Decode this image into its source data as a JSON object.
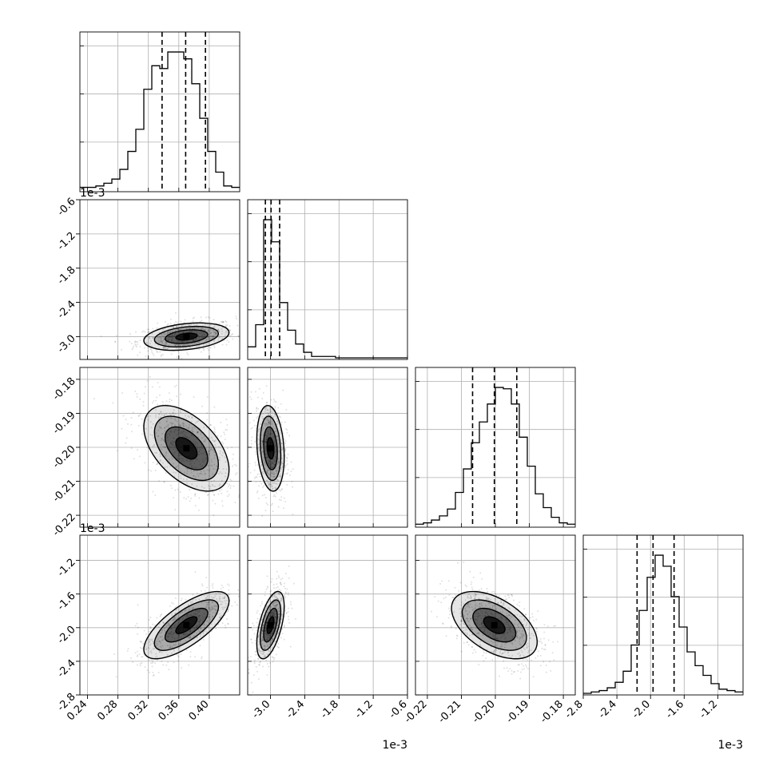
{
  "chart_data": {
    "type": "corner",
    "parameters": 4,
    "colors": {
      "frame": "#000000",
      "grid": "#b0b0b0",
      "points": "#000000",
      "hist": "#000000"
    },
    "axes": [
      {
        "ticks": [
          "0.24",
          "0.28",
          "0.32",
          "0.36",
          "0.40"
        ],
        "tick_values": [
          0.24,
          0.28,
          0.32,
          0.36,
          0.4
        ],
        "range": [
          0.23,
          0.44
        ],
        "offset": ""
      },
      {
        "ticks": [
          "-3.0",
          "-2.4",
          "-1.8",
          "-1.2",
          "-0.6"
        ],
        "tick_values": [
          -3.0,
          -2.4,
          -1.8,
          -1.2,
          -0.6
        ],
        "range": [
          -3.4,
          -0.6
        ],
        "offset": "1e-3"
      },
      {
        "ticks": [
          "-0.22",
          "-0.21",
          "-0.20",
          "-0.19",
          "-0.18"
        ],
        "tick_values": [
          -0.22,
          -0.21,
          -0.2,
          -0.19,
          -0.18
        ],
        "range": [
          -0.2235,
          -0.1765
        ],
        "offset": ""
      },
      {
        "ticks": [
          "-2.8",
          "-2.4",
          "-2.0",
          "-1.6",
          "-1.2"
        ],
        "tick_values": [
          -2.8,
          -2.4,
          -2.0,
          -1.6,
          -1.2
        ],
        "range": [
          -2.8,
          -0.9
        ],
        "offset": "1e-3"
      }
    ],
    "histograms": [
      {
        "edges_start": 0.23,
        "edges_end": 0.44,
        "counts": [
          2,
          2,
          3,
          5,
          8,
          15,
          28,
          44,
          73,
          90,
          88,
          100,
          100,
          95,
          77,
          52,
          28,
          13,
          3,
          2
        ],
        "quantiles": [
          0.338,
          0.369,
          0.395
        ]
      },
      {
        "edges_start": -3.4,
        "edges_end": -0.6,
        "counts": [
          8,
          24,
          100,
          84,
          40,
          20,
          10,
          4,
          1,
          1,
          1,
          0,
          0,
          0,
          0,
          0,
          0,
          0,
          0,
          0
        ],
        "quantiles": [
          -3.09,
          -2.99,
          -2.84
        ]
      },
      {
        "edges_start": -0.2235,
        "edges_end": -0.1765,
        "counts": [
          1,
          2,
          4,
          7,
          12,
          24,
          41,
          60,
          75,
          88,
          100,
          99,
          88,
          64,
          43,
          23,
          13,
          6,
          2,
          1
        ],
        "quantiles": [
          -0.2067,
          -0.2003,
          -0.1937
        ]
      },
      {
        "edges_start": -2.8,
        "edges_end": -0.9,
        "counts": [
          0,
          1,
          2,
          4,
          8,
          16,
          35,
          60,
          84,
          100,
          92,
          70,
          48,
          30,
          20,
          13,
          7,
          3,
          2,
          1
        ],
        "quantiles": [
          -2.16,
          -1.97,
          -1.72
        ]
      }
    ],
    "pairs": [
      {
        "x": 0,
        "y": 1,
        "mean": [
          0.37,
          -3.0
        ],
        "sd": [
          0.028,
          0.12
        ],
        "rho": 0.3
      },
      {
        "x": 0,
        "y": 2,
        "mean": [
          0.37,
          -0.2003
        ],
        "sd": [
          0.028,
          0.0063
        ],
        "rho": -0.5
      },
      {
        "x": 1,
        "y": 2,
        "mean": [
          -3.0,
          -0.2003
        ],
        "sd": [
          0.12,
          0.0063
        ],
        "rho": -0.2
      },
      {
        "x": 0,
        "y": 3,
        "mean": [
          0.37,
          -1.97
        ],
        "sd": [
          0.028,
          0.2
        ],
        "rho": 0.72
      },
      {
        "x": 1,
        "y": 3,
        "mean": [
          -3.0,
          -1.97
        ],
        "sd": [
          0.12,
          0.2
        ],
        "rho": 0.55
      },
      {
        "x": 2,
        "y": 3,
        "mean": [
          -0.2003,
          -1.97
        ],
        "sd": [
          0.0063,
          0.2
        ],
        "rho": -0.5
      }
    ]
  }
}
